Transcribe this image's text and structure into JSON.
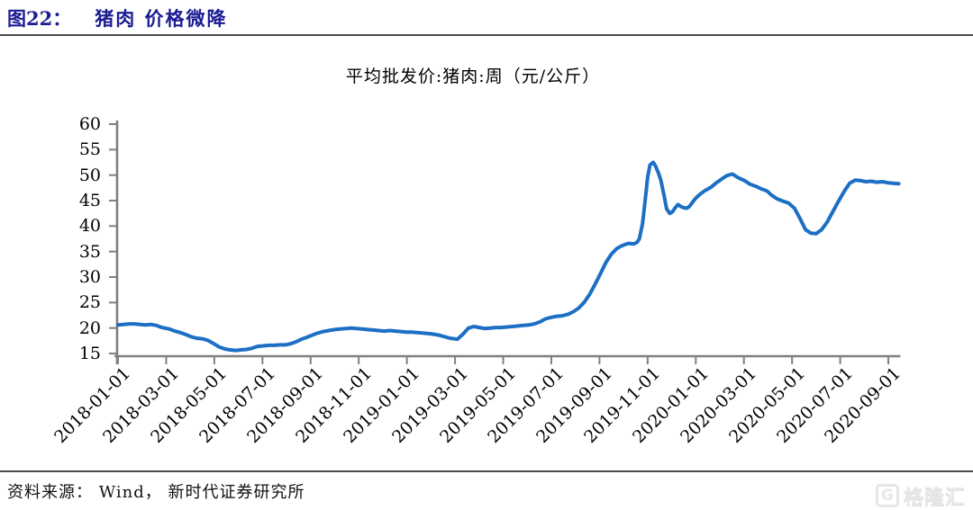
{
  "header": {
    "figure_label": "图22：",
    "figure_title": "猪肉 价格微降"
  },
  "footer": {
    "source_label": "资料来源： Wind， 新时代证券研究所",
    "watermark_icon": "G",
    "watermark_text": "格隆汇"
  },
  "colors": {
    "line_blue": "#1C6FC4",
    "axis_gray": "#808080",
    "header_navy": "#1B1B94",
    "rule_gray": "#4a4a4a"
  },
  "chart_data": {
    "type": "line",
    "title": "平均批发价:猪肉:周（元/公斤）",
    "grid": false,
    "legend_position": "none",
    "ylim": [
      15,
      60
    ],
    "y_ticks": [
      15,
      20,
      25,
      30,
      35,
      40,
      45,
      50,
      55,
      60
    ],
    "x_tick_labels": [
      "2018-01-01",
      "2018-03-01",
      "2018-05-01",
      "2018-07-01",
      "2018-09-01",
      "2018-11-01",
      "2019-01-01",
      "2019-03-01",
      "2019-05-01",
      "2019-07-01",
      "2019-09-01",
      "2019-11-01",
      "2020-01-01",
      "2020-03-01",
      "2020-05-01",
      "2020-07-01",
      "2020-09-01"
    ],
    "x_range": [
      "2018-01-01",
      "2020-09-14"
    ],
    "series": [
      {
        "name": "平均批发价:猪肉:周",
        "unit": "元/公斤",
        "color": "#1C6FC4",
        "points": [
          [
            "2018-01-01",
            20.6
          ],
          [
            "2018-01-08",
            20.7
          ],
          [
            "2018-01-15",
            20.8
          ],
          [
            "2018-01-22",
            20.8
          ],
          [
            "2018-01-29",
            20.7
          ],
          [
            "2018-02-05",
            20.6
          ],
          [
            "2018-02-12",
            20.7
          ],
          [
            "2018-02-19",
            20.5
          ],
          [
            "2018-02-26",
            20.1
          ],
          [
            "2018-03-05",
            19.8
          ],
          [
            "2018-03-12",
            19.4
          ],
          [
            "2018-03-19",
            19.1
          ],
          [
            "2018-03-26",
            18.7
          ],
          [
            "2018-04-02",
            18.3
          ],
          [
            "2018-04-09",
            18.0
          ],
          [
            "2018-04-16",
            17.9
          ],
          [
            "2018-04-23",
            17.6
          ],
          [
            "2018-04-30",
            17.0
          ],
          [
            "2018-05-07",
            16.3
          ],
          [
            "2018-05-14",
            15.9
          ],
          [
            "2018-05-21",
            15.7
          ],
          [
            "2018-05-28",
            15.6
          ],
          [
            "2018-06-04",
            15.7
          ],
          [
            "2018-06-11",
            15.8
          ],
          [
            "2018-06-18",
            16.0
          ],
          [
            "2018-06-25",
            16.4
          ],
          [
            "2018-07-02",
            16.5
          ],
          [
            "2018-07-09",
            16.6
          ],
          [
            "2018-07-16",
            16.6
          ],
          [
            "2018-07-23",
            16.7
          ],
          [
            "2018-07-30",
            16.7
          ],
          [
            "2018-08-06",
            16.9
          ],
          [
            "2018-08-13",
            17.3
          ],
          [
            "2018-08-20",
            17.8
          ],
          [
            "2018-08-27",
            18.2
          ],
          [
            "2018-09-03",
            18.6
          ],
          [
            "2018-09-10",
            19.0
          ],
          [
            "2018-09-17",
            19.3
          ],
          [
            "2018-09-24",
            19.5
          ],
          [
            "2018-10-01",
            19.7
          ],
          [
            "2018-10-08",
            19.8
          ],
          [
            "2018-10-15",
            19.9
          ],
          [
            "2018-10-22",
            20.0
          ],
          [
            "2018-10-29",
            19.9
          ],
          [
            "2018-11-05",
            19.8
          ],
          [
            "2018-11-12",
            19.7
          ],
          [
            "2018-11-19",
            19.6
          ],
          [
            "2018-11-26",
            19.5
          ],
          [
            "2018-12-03",
            19.4
          ],
          [
            "2018-12-10",
            19.5
          ],
          [
            "2018-12-17",
            19.4
          ],
          [
            "2018-12-24",
            19.3
          ],
          [
            "2018-12-31",
            19.2
          ],
          [
            "2019-01-07",
            19.2
          ],
          [
            "2019-01-14",
            19.1
          ],
          [
            "2019-01-21",
            19.0
          ],
          [
            "2019-01-28",
            18.9
          ],
          [
            "2019-02-04",
            18.8
          ],
          [
            "2019-02-11",
            18.6
          ],
          [
            "2019-02-18",
            18.3
          ],
          [
            "2019-02-25",
            18.0
          ],
          [
            "2019-03-04",
            17.8
          ],
          [
            "2019-03-11",
            18.8
          ],
          [
            "2019-03-18",
            20.0
          ],
          [
            "2019-03-25",
            20.3
          ],
          [
            "2019-04-01",
            20.1
          ],
          [
            "2019-04-08",
            19.9
          ],
          [
            "2019-04-15",
            20.0
          ],
          [
            "2019-04-22",
            20.1
          ],
          [
            "2019-04-29",
            20.1
          ],
          [
            "2019-05-06",
            20.2
          ],
          [
            "2019-05-13",
            20.3
          ],
          [
            "2019-05-20",
            20.4
          ],
          [
            "2019-05-27",
            20.5
          ],
          [
            "2019-06-03",
            20.6
          ],
          [
            "2019-06-10",
            20.8
          ],
          [
            "2019-06-17",
            21.2
          ],
          [
            "2019-06-24",
            21.8
          ],
          [
            "2019-07-01",
            22.1
          ],
          [
            "2019-07-08",
            22.3
          ],
          [
            "2019-07-15",
            22.4
          ],
          [
            "2019-07-22",
            22.7
          ],
          [
            "2019-07-29",
            23.2
          ],
          [
            "2019-08-05",
            23.9
          ],
          [
            "2019-08-12",
            25.0
          ],
          [
            "2019-08-19",
            26.6
          ],
          [
            "2019-08-26",
            28.6
          ],
          [
            "2019-09-02",
            30.6
          ],
          [
            "2019-09-09",
            32.8
          ],
          [
            "2019-09-16",
            34.5
          ],
          [
            "2019-09-23",
            35.6
          ],
          [
            "2019-09-30",
            36.2
          ],
          [
            "2019-10-07",
            36.6
          ],
          [
            "2019-10-14",
            36.5
          ],
          [
            "2019-10-18",
            36.8
          ],
          [
            "2019-10-21",
            37.5
          ],
          [
            "2019-10-25",
            40.5
          ],
          [
            "2019-10-28",
            44.5
          ],
          [
            "2019-11-01",
            49.5
          ],
          [
            "2019-11-04",
            52.0
          ],
          [
            "2019-11-08",
            52.5
          ],
          [
            "2019-11-11",
            51.8
          ],
          [
            "2019-11-15",
            50.3
          ],
          [
            "2019-11-18",
            48.8
          ],
          [
            "2019-11-22",
            45.8
          ],
          [
            "2019-11-25",
            43.4
          ],
          [
            "2019-11-29",
            42.5
          ],
          [
            "2019-12-02",
            42.8
          ],
          [
            "2019-12-06",
            43.7
          ],
          [
            "2019-12-09",
            44.2
          ],
          [
            "2019-12-13",
            43.8
          ],
          [
            "2019-12-16",
            43.6
          ],
          [
            "2019-12-20",
            43.5
          ],
          [
            "2019-12-23",
            43.8
          ],
          [
            "2019-12-27",
            44.6
          ],
          [
            "2019-12-31",
            45.4
          ],
          [
            "2020-01-06",
            46.2
          ],
          [
            "2020-01-13",
            47.0
          ],
          [
            "2020-01-20",
            47.6
          ],
          [
            "2020-01-27",
            48.5
          ],
          [
            "2020-02-03",
            49.2
          ],
          [
            "2020-02-10",
            49.9
          ],
          [
            "2020-02-17",
            50.2
          ],
          [
            "2020-02-24",
            49.5
          ],
          [
            "2020-03-02",
            48.9
          ],
          [
            "2020-03-09",
            48.2
          ],
          [
            "2020-03-16",
            47.8
          ],
          [
            "2020-03-23",
            47.3
          ],
          [
            "2020-03-30",
            46.9
          ],
          [
            "2020-04-06",
            46.0
          ],
          [
            "2020-04-13",
            45.3
          ],
          [
            "2020-04-20",
            44.9
          ],
          [
            "2020-04-27",
            44.5
          ],
          [
            "2020-05-04",
            43.5
          ],
          [
            "2020-05-11",
            41.5
          ],
          [
            "2020-05-18",
            39.3
          ],
          [
            "2020-05-25",
            38.6
          ],
          [
            "2020-06-01",
            38.5
          ],
          [
            "2020-06-08",
            39.3
          ],
          [
            "2020-06-15",
            40.8
          ],
          [
            "2020-06-22",
            42.8
          ],
          [
            "2020-06-29",
            44.8
          ],
          [
            "2020-07-06",
            46.8
          ],
          [
            "2020-07-13",
            48.4
          ],
          [
            "2020-07-20",
            49.0
          ],
          [
            "2020-07-27",
            48.9
          ],
          [
            "2020-08-03",
            48.7
          ],
          [
            "2020-08-10",
            48.8
          ],
          [
            "2020-08-17",
            48.6
          ],
          [
            "2020-08-24",
            48.7
          ],
          [
            "2020-08-31",
            48.5
          ],
          [
            "2020-09-07",
            48.4
          ],
          [
            "2020-09-14",
            48.3
          ]
        ]
      }
    ]
  }
}
